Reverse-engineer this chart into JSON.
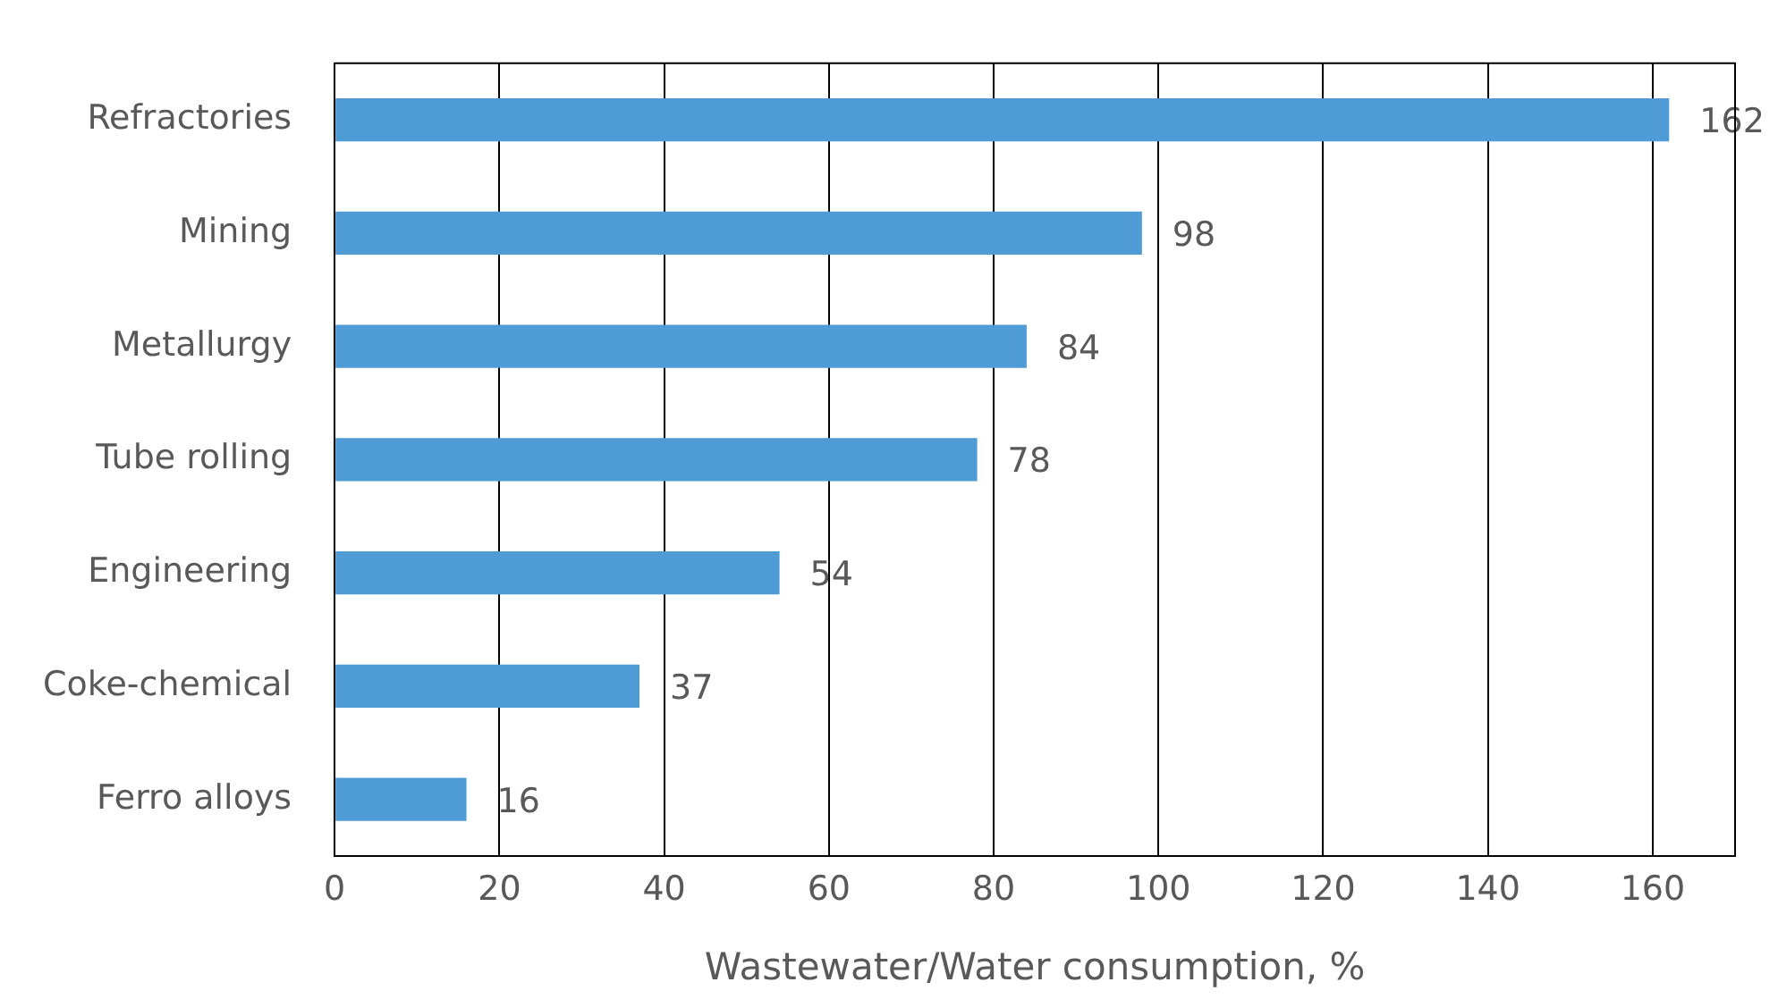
{
  "chart_data": {
    "type": "bar",
    "orientation": "horizontal",
    "xlabel": "Wastewater/Water consumption, %",
    "categories": [
      "Refractories",
      "Mining",
      "Metallurgy",
      "Tube rolling",
      "Engineering",
      "Coke-chemical",
      "Ferro alloys"
    ],
    "values": [
      162,
      98,
      84,
      78,
      54,
      37,
      16
    ],
    "color": "#4e9bd5",
    "xlim": [
      0,
      170
    ],
    "xticks": [
      0,
      20,
      40,
      60,
      80,
      100,
      120,
      140,
      160
    ],
    "grid": "x",
    "data_labels": true,
    "legend": false
  }
}
